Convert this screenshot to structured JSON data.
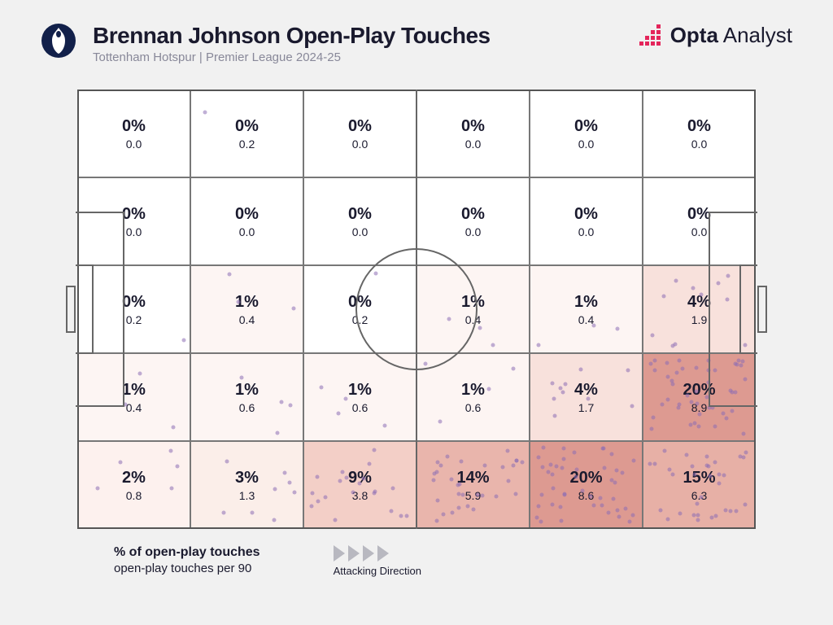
{
  "header": {
    "title": "Brennan Johnson Open-Play Touches",
    "subtitle": "Tottenham Hotspur | Premier League 2024-25",
    "brand_bold": "Opta",
    "brand_light": " Analyst"
  },
  "legend": {
    "line1": "% of open-play touches",
    "line2": "open-play touches per 90",
    "attacking": "Attacking Direction"
  },
  "chart": {
    "type": "pitch-zone-heatmap",
    "rows": 5,
    "cols": 6,
    "pitch_line_color": "#666666",
    "text_color": "#1a1a2e",
    "background_color": "#f1f1f1",
    "dot_color": "rgba(140,110,180,0.55)",
    "heat_scale": {
      "0": "#ffffff",
      "1": "#fdf5f3",
      "2": "#fdf1ee",
      "3": "#fbeee9",
      "4": "#f8e1dc",
      "9": "#f3cfc7",
      "14": "#e9b5ac",
      "15": "#e7b0a6",
      "20": "#dd9a91"
    },
    "zones": [
      [
        {
          "pct": 0,
          "per90": 0.0
        },
        {
          "pct": 0,
          "per90": 0.2
        },
        {
          "pct": 0,
          "per90": 0.0
        },
        {
          "pct": 0,
          "per90": 0.0
        },
        {
          "pct": 0,
          "per90": 0.0
        },
        {
          "pct": 0,
          "per90": 0.0
        }
      ],
      [
        {
          "pct": 0,
          "per90": 0.0
        },
        {
          "pct": 0,
          "per90": 0.0
        },
        {
          "pct": 0,
          "per90": 0.0
        },
        {
          "pct": 0,
          "per90": 0.0
        },
        {
          "pct": 0,
          "per90": 0.0
        },
        {
          "pct": 0,
          "per90": 0.0
        }
      ],
      [
        {
          "pct": 0,
          "per90": 0.2
        },
        {
          "pct": 1,
          "per90": 0.4
        },
        {
          "pct": 0,
          "per90": 0.2
        },
        {
          "pct": 1,
          "per90": 0.4
        },
        {
          "pct": 1,
          "per90": 0.4
        },
        {
          "pct": 4,
          "per90": 1.9
        }
      ],
      [
        {
          "pct": 1,
          "per90": 0.4
        },
        {
          "pct": 1,
          "per90": 0.6
        },
        {
          "pct": 1,
          "per90": 0.6
        },
        {
          "pct": 1,
          "per90": 0.6
        },
        {
          "pct": 4,
          "per90": 1.7
        },
        {
          "pct": 20,
          "per90": 8.9
        }
      ],
      [
        {
          "pct": 2,
          "per90": 0.8
        },
        {
          "pct": 3,
          "per90": 1.3
        },
        {
          "pct": 9,
          "per90": 3.8
        },
        {
          "pct": 14,
          "per90": 5.9
        },
        {
          "pct": 20,
          "per90": 8.6
        },
        {
          "pct": 15,
          "per90": 6.3
        }
      ]
    ],
    "dots_seed": 20241
  }
}
